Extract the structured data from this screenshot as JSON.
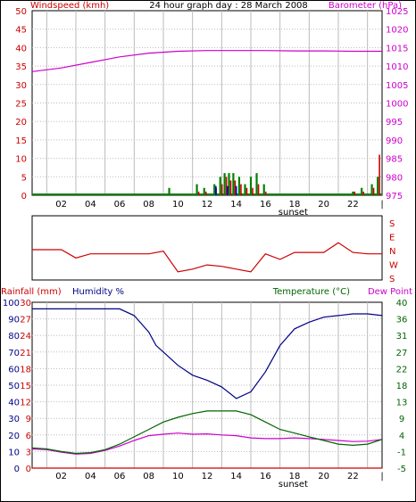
{
  "colors": {
    "wind": "#008000",
    "gust": "#cc0000",
    "bar_blue": "#0000cc",
    "baro": "#cc00cc",
    "wdir": "#cc0000",
    "hum": "#000088",
    "temp": "#006600",
    "dew": "#cc00cc",
    "rain": "#cc0000",
    "grid": "#bbbbbb",
    "wind_axis_text": "#cc0000",
    "baro_axis_text": "#cc00cc",
    "rain_text": "#cc0000",
    "hum_text": "#000088",
    "temp_text": "#006600",
    "dew_text": "#cc00cc"
  },
  "chart_data": [
    {
      "type": "line",
      "title": "24 hour graph day : 28 March 2008",
      "ylabel_left": "Windspeed (kmh)",
      "ylabel_right": "Barometer (hPa)",
      "x_ticks": [
        "02",
        "04",
        "06",
        "08",
        "10",
        "12",
        "14",
        "16",
        "18",
        "20",
        "22",
        "|"
      ],
      "annotation": "sunset",
      "left_ticks": [
        "50",
        "45",
        "40",
        "35",
        "30",
        "25",
        "20",
        "15",
        "10",
        "5",
        "0"
      ],
      "right_ticks": [
        "1025",
        "1020",
        "1015",
        "1010",
        "1005",
        "1000",
        "995",
        "990",
        "985",
        "980",
        "975"
      ],
      "ylim_left": [
        0,
        50
      ],
      "ylim_right": [
        975,
        1025
      ],
      "barometer": {
        "x": [
          0,
          2,
          4,
          6,
          8,
          10,
          12,
          14,
          16,
          18,
          20,
          22,
          24
        ],
        "y": [
          1008.5,
          1009.5,
          1011,
          1012.5,
          1013.5,
          1014,
          1014.2,
          1014.2,
          1014.2,
          1014.1,
          1014.1,
          1014,
          1014
        ]
      },
      "wind_bars": [
        {
          "x": 9.4,
          "wind": 2,
          "gust": 0
        },
        {
          "x": 11.3,
          "wind": 3,
          "gust": 1
        },
        {
          "x": 11.8,
          "wind": 2,
          "gust": 1
        },
        {
          "x": 12.5,
          "wind": 3,
          "gust": 2
        },
        {
          "x": 12.9,
          "wind": 5,
          "gust": 3
        },
        {
          "x": 13.2,
          "wind": 6,
          "gust": 5
        },
        {
          "x": 13.5,
          "wind": 6,
          "gust": 4
        },
        {
          "x": 13.8,
          "wind": 6,
          "gust": 4
        },
        {
          "x": 14.2,
          "wind": 5,
          "gust": 3
        },
        {
          "x": 14.6,
          "wind": 3,
          "gust": 2
        },
        {
          "x": 15.0,
          "wind": 5,
          "gust": 2
        },
        {
          "x": 15.4,
          "wind": 6,
          "gust": 3
        },
        {
          "x": 15.9,
          "wind": 3,
          "gust": 1
        },
        {
          "x": 22.0,
          "wind": 1,
          "gust": 1
        },
        {
          "x": 22.6,
          "wind": 2,
          "gust": 1
        },
        {
          "x": 23.3,
          "wind": 3,
          "gust": 2
        },
        {
          "x": 23.7,
          "wind": 5,
          "gust": 11
        }
      ],
      "series": [
        {
          "name": "Windspeed (kmh)"
        },
        {
          "name": "Barometer (hPa)"
        }
      ]
    },
    {
      "type": "line",
      "direction_labels": [
        "S",
        "E",
        "N",
        "W",
        "S"
      ],
      "x": [
        0,
        1,
        2,
        3,
        4,
        5,
        6,
        7,
        8,
        9,
        10,
        11,
        12,
        13,
        14,
        15,
        16,
        17,
        18,
        19,
        20,
        21,
        22,
        23,
        24
      ],
      "direction_deg": [
        180,
        180,
        180,
        120,
        150,
        150,
        150,
        150,
        150,
        170,
        20,
        40,
        70,
        60,
        40,
        20,
        150,
        110,
        160,
        160,
        160,
        230,
        160,
        150,
        150
      ]
    },
    {
      "type": "line",
      "ylabel_left_rain": "Rainfall (mm)",
      "ylabel_left_hum": "Humidity %",
      "ylabel_right_temp": "Temperature (°C)",
      "ylabel_right_dew": "Dew Point",
      "x_ticks": [
        "02",
        "04",
        "06",
        "08",
        "10",
        "12",
        "14",
        "16",
        "18",
        "20",
        "22",
        "|"
      ],
      "annotation": "sunset",
      "hum_ticks": [
        "100",
        "90",
        "80",
        "70",
        "60",
        "50",
        "40",
        "30",
        "20",
        "10",
        "0"
      ],
      "rain_ticks": [
        "30",
        "27",
        "24",
        "21",
        "18",
        "15",
        "12",
        "9",
        "6",
        "3",
        "0"
      ],
      "temp_ticks": [
        "40",
        "36",
        "31",
        "27",
        "22",
        "18",
        "13",
        "9",
        "4",
        "-1",
        "-5"
      ],
      "ylim_humidity": [
        0,
        100
      ],
      "ylim_rain": [
        0,
        30
      ],
      "ylim_temp": [
        -5,
        40
      ],
      "humidity": {
        "x": [
          0,
          1,
          2,
          3,
          4,
          5,
          6,
          7,
          8,
          8.5,
          9,
          10,
          11,
          12,
          13,
          14,
          15,
          16,
          17,
          18,
          19,
          20,
          21,
          22,
          23,
          24
        ],
        "y": [
          96,
          96,
          96,
          96,
          96,
          96,
          96,
          92,
          82,
          74,
          70,
          62,
          56,
          53,
          49,
          42,
          46,
          58,
          74,
          84,
          88,
          91,
          92,
          93,
          93,
          92
        ]
      },
      "temperature": {
        "x": [
          0,
          1,
          2,
          3,
          4,
          5,
          6,
          7,
          8,
          9,
          10,
          11,
          12,
          13,
          14,
          15,
          16,
          17,
          18,
          19,
          20,
          21,
          22,
          23,
          24
        ],
        "y": [
          0.5,
          0.2,
          -0.5,
          -1.0,
          -0.8,
          0.0,
          1.5,
          3.5,
          5.5,
          7.5,
          8.8,
          9.8,
          10.5,
          10.5,
          10.5,
          9.5,
          7.5,
          5.5,
          4.5,
          3.5,
          2.5,
          1.5,
          1.2,
          1.5,
          2.8
        ]
      },
      "dew_point": {
        "x": [
          0,
          1,
          2,
          3,
          4,
          5,
          6,
          7,
          8,
          9,
          10,
          11,
          12,
          13,
          14,
          15,
          16,
          17,
          18,
          19,
          20,
          21,
          22,
          23,
          24
        ],
        "y": [
          0.2,
          0.0,
          -0.7,
          -1.2,
          -1.0,
          -0.2,
          1.0,
          2.5,
          3.8,
          4.2,
          4.5,
          4.2,
          4.3,
          4.0,
          3.8,
          3.2,
          3.0,
          3.0,
          3.2,
          3.0,
          2.8,
          2.5,
          2.2,
          2.3,
          2.8
        ]
      },
      "rain": {
        "x": [
          0,
          24
        ],
        "y": [
          0,
          0
        ]
      }
    }
  ]
}
